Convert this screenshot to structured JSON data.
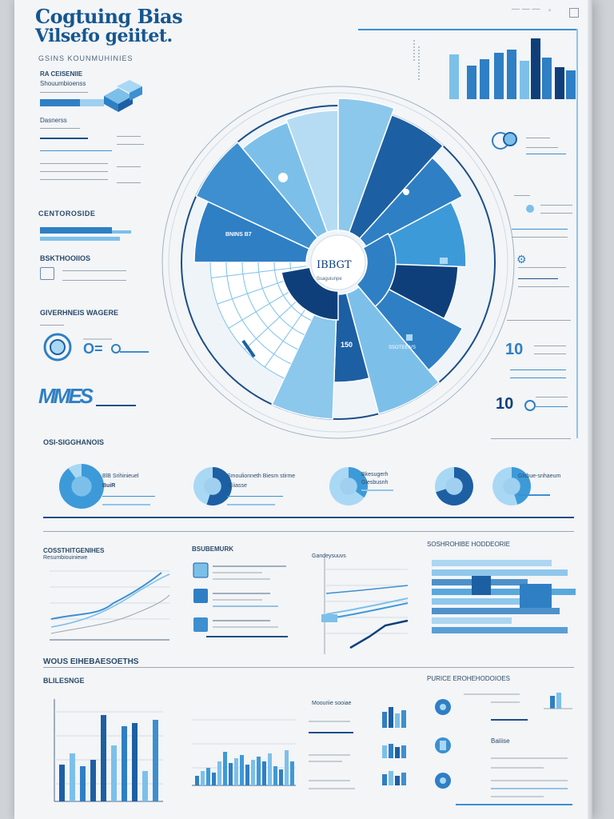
{
  "header": {
    "title_line1": "Cogtuing Bias",
    "title_line2": "Vilsefo geiitet.",
    "subtitle": "GSINS KOUNMUHINIES"
  },
  "top_window_icons": [
    "minimize-icon",
    "restore-icon",
    "close-icon"
  ],
  "left_panel": {
    "label_a": "RA CEISENIIE",
    "label_b": "Shouumbioenss",
    "label_c": "Dasnerss",
    "section_1": "CENTOROSIDE",
    "section_2": "BSKTHOOIIOS",
    "section_3": "GIVERHNEIS WAGERE",
    "big_glyph": "MMES"
  },
  "wheel": {
    "center_label": "IBBGT",
    "center_sub": "Ssaguiunpe",
    "seg_label_a": "BNINS B7",
    "seg_label_b": "150",
    "seg_label_c": "SSOTEEIVS"
  },
  "right_panel": {
    "num_a": "10",
    "num_b": "10"
  },
  "donut_section": {
    "heading": "OSI-SIGGHANOIS",
    "items": [
      {
        "label": "BlB Srihinieuel",
        "sub": "BuiR"
      },
      {
        "label": "Smoulionneth Biesm stirme",
        "sub": "Ciiasse"
      },
      {
        "label": "Bkesugerh",
        "sub": "Glesbusnh"
      },
      {
        "label": "Glsbue-snhaeum",
        "sub": ""
      }
    ],
    "fills": [
      0.9,
      0.55,
      0.35,
      0.7,
      0.45
    ]
  },
  "middle_row": {
    "panel_1_title": "COSSTHITGENIHES",
    "panel_1_sub": "Resumbiouiniewe",
    "panel_2_title": "BSUBEMURK",
    "panel_3_title": "Gandeysuuvs",
    "panel_4_title": "SOSHROHIBE HODDEORIE"
  },
  "bottom_row": {
    "heading": "WOUS EIHEBAESOETHS",
    "sub": "BLILESNGE",
    "panel_3_title": "Moouriie sooiae",
    "panel_4_title": "PURICE EROHEHODOIOES",
    "panel_4_label": "Baiiise"
  },
  "colors": {
    "dark": "#0f3f7a",
    "mid": "#2f7fc4",
    "light": "#7cc0ea",
    "pale": "#c4e3f6"
  }
}
